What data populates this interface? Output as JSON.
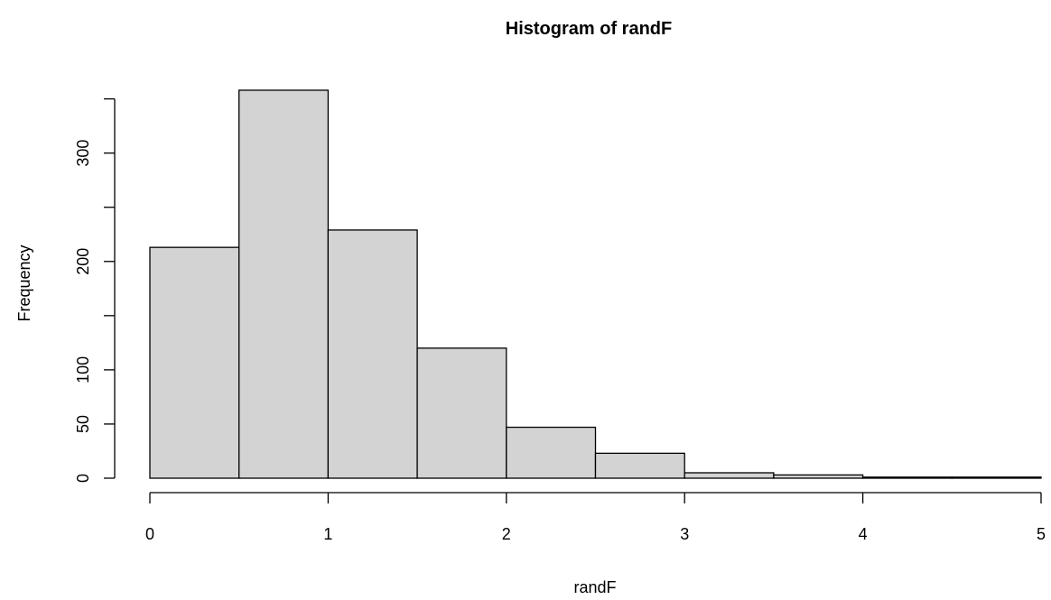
{
  "chart_data": {
    "type": "bar",
    "subtype": "histogram",
    "title": "Histogram of randF",
    "xlabel": "randF",
    "ylabel": "Frequency",
    "bins": [
      {
        "from": 0.0,
        "to": 0.5,
        "count": 213
      },
      {
        "from": 0.5,
        "to": 1.0,
        "count": 358
      },
      {
        "from": 1.0,
        "to": 1.5,
        "count": 229
      },
      {
        "from": 1.5,
        "to": 2.0,
        "count": 120
      },
      {
        "from": 2.0,
        "to": 2.5,
        "count": 47
      },
      {
        "from": 2.5,
        "to": 3.0,
        "count": 23
      },
      {
        "from": 3.0,
        "to": 3.5,
        "count": 5
      },
      {
        "from": 3.5,
        "to": 4.0,
        "count": 3
      },
      {
        "from": 4.0,
        "to": 4.5,
        "count": 1
      },
      {
        "from": 4.5,
        "to": 5.0,
        "count": 1
      }
    ],
    "xlim": [
      0,
      5
    ],
    "ylim": [
      0,
      358
    ],
    "x_ticks": [
      0,
      1,
      2,
      3,
      4,
      5
    ],
    "x_tick_labels": [
      "0",
      "1",
      "2",
      "3",
      "4",
      "5"
    ],
    "y_ticks": [
      0,
      50,
      100,
      150,
      200,
      250,
      300,
      350
    ],
    "y_tick_labels": [
      "0",
      "50",
      "100",
      "",
      "200",
      "",
      "300",
      ""
    ],
    "bar_fill": "#d3d3d3",
    "bar_stroke": "#000000",
    "grid": false
  }
}
